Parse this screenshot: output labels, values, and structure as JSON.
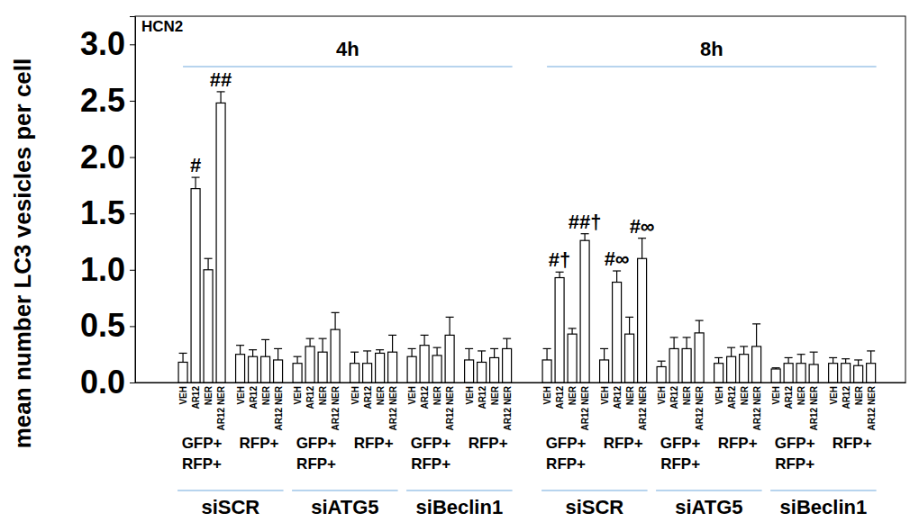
{
  "chart_data": {
    "type": "bar",
    "title": "HCN2",
    "y_label": "mean number LC3 vesicles per cell",
    "color": "#ffffff",
    "grid": false,
    "ylim": [
      0,
      3.25
    ],
    "yticks": [
      {
        "value": 0,
        "label": "0.0"
      },
      {
        "value": 0.5,
        "label": "0.5"
      },
      {
        "value": 1,
        "label": "1.0"
      },
      {
        "value": 1.5,
        "label": "1.5"
      },
      {
        "value": 2,
        "label": "2.0"
      },
      {
        "value": 2.5,
        "label": "2.5"
      },
      {
        "value": 3,
        "label": "3.0"
      }
    ],
    "categories": [
      "VEH",
      "AR12",
      "NER",
      "AR12 NER",
      "VEH",
      "AR12",
      "NER",
      "AR12 NER",
      "VEH",
      "AR12",
      "NER",
      "AR12 NER",
      "VEH",
      "AR12",
      "NER",
      "AR12 NER",
      "VEH",
      "AR12",
      "NER",
      "AR12 NER",
      "VEH",
      "AR12",
      "NER",
      "AR12 NER",
      "VEH",
      "AR12",
      "NER",
      "AR12 NER",
      "VEH",
      "AR12",
      "NER",
      "AR12 NER",
      "VEH",
      "AR12",
      "NER",
      "AR12 NER",
      "VEH",
      "AR12",
      "NER",
      "AR12 NER",
      "VEH",
      "AR12",
      "NER",
      "AR12 NER",
      "VEH",
      "AR12",
      "NER",
      "AR12 NER"
    ],
    "values": [
      0.18,
      1.72,
      1.0,
      2.48,
      0.25,
      0.23,
      0.23,
      0.2,
      0.17,
      0.32,
      0.27,
      0.47,
      0.17,
      0.17,
      0.26,
      0.27,
      0.23,
      0.33,
      0.24,
      0.42,
      0.2,
      0.18,
      0.22,
      0.3,
      0.2,
      0.93,
      0.43,
      1.26,
      0.2,
      0.89,
      0.43,
      1.1,
      0.14,
      0.3,
      0.3,
      0.44,
      0.17,
      0.23,
      0.25,
      0.32,
      0.12,
      0.17,
      0.17,
      0.16,
      0.17,
      0.17,
      0.15,
      0.17
    ],
    "errors": [
      0.08,
      0.1,
      0.1,
      0.1,
      0.08,
      0.06,
      0.15,
      0.1,
      0.06,
      0.07,
      0.12,
      0.15,
      0.1,
      0.11,
      0.03,
      0.15,
      0.07,
      0.09,
      0.07,
      0.16,
      0.1,
      0.1,
      0.08,
      0.09,
      0.1,
      0.05,
      0.05,
      0.06,
      0.1,
      0.1,
      0.15,
      0.18,
      0.05,
      0.1,
      0.1,
      0.11,
      0.05,
      0.08,
      0.07,
      0.2,
      0.01,
      0.05,
      0.08,
      0.11,
      0.05,
      0.04,
      0.05,
      0.11
    ],
    "annotations": [
      {
        "index": 1,
        "text": "#"
      },
      {
        "index": 3,
        "text": "##"
      },
      {
        "index": 25,
        "text": "#†"
      },
      {
        "index": 27,
        "text": "##†"
      },
      {
        "index": 29,
        "text": "#∞"
      },
      {
        "index": 31,
        "text": "#∞"
      }
    ],
    "panels": [
      {
        "label": "4h",
        "groups": [
          {
            "label": "siSCR",
            "cells": [
              [
                "GFP+",
                "RFP+"
              ],
              [
                "RFP+"
              ]
            ]
          },
          {
            "label": "siATG5",
            "cells": [
              [
                "GFP+",
                "RFP+"
              ],
              [
                "RFP+"
              ]
            ]
          },
          {
            "label": "siBeclin1",
            "cells": [
              [
                "GFP+",
                "RFP+"
              ],
              [
                "RFP+"
              ]
            ]
          }
        ]
      },
      {
        "label": "8h",
        "groups": [
          {
            "label": "siSCR",
            "cells": [
              [
                "GFP+",
                "RFP+"
              ],
              [
                "RFP+"
              ]
            ]
          },
          {
            "label": "siATG5",
            "cells": [
              [
                "GFP+",
                "RFP+"
              ],
              [
                "RFP+"
              ]
            ]
          },
          {
            "label": "siBeclin1",
            "cells": [
              [
                "GFP+",
                "RFP+"
              ],
              [
                "RFP+"
              ]
            ]
          }
        ]
      }
    ]
  }
}
